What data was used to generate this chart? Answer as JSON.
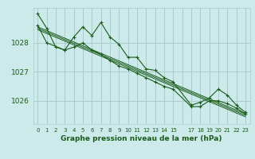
{
  "title": "Graphe pression niveau de la mer (hPa)",
  "bg_color": "#cceaea",
  "grid_color": "#aacccc",
  "line_color": "#1a5c1a",
  "xlim": [
    -0.5,
    23.5
  ],
  "ylim": [
    1025.2,
    1029.2
  ],
  "yticks": [
    1026,
    1027,
    1028
  ],
  "xtick_labels": [
    "0",
    "1",
    "2",
    "3",
    "4",
    "5",
    "6",
    "7",
    "8",
    "9",
    "10",
    "11",
    "12",
    "13",
    "14",
    "15",
    "",
    "17",
    "18",
    "19",
    "20",
    "21",
    "22",
    "23"
  ],
  "series": [
    {
      "x": [
        0,
        1,
        2,
        3,
        4,
        5,
        6,
        7,
        8,
        9,
        10,
        11,
        12,
        13,
        14,
        15,
        17,
        18,
        19,
        20,
        21,
        22,
        23
      ],
      "y": [
        1029.0,
        1028.5,
        1027.85,
        1027.75,
        1028.2,
        1028.55,
        1028.25,
        1028.7,
        1028.2,
        1027.95,
        1027.5,
        1027.5,
        1027.1,
        1027.05,
        1026.8,
        1026.65,
        1025.85,
        1025.95,
        1026.1,
        1026.4,
        1026.2,
        1025.85,
        1025.6
      ],
      "marker": "+"
    },
    {
      "x": [
        0,
        1,
        3,
        4,
        5,
        6,
        7,
        8,
        9,
        10,
        11,
        12,
        13,
        14,
        15,
        17,
        18,
        19,
        20,
        21,
        22,
        23
      ],
      "y": [
        1028.6,
        1028.0,
        1027.75,
        1027.85,
        1028.0,
        1027.75,
        1027.6,
        1027.4,
        1027.2,
        1027.1,
        1026.95,
        1026.8,
        1026.65,
        1026.5,
        1026.4,
        1025.8,
        1025.8,
        1026.0,
        1026.0,
        1025.9,
        1025.75,
        1025.55
      ],
      "marker": "+"
    },
    {
      "x": [
        0,
        23
      ],
      "y": [
        1028.55,
        1025.55
      ],
      "marker": null
    },
    {
      "x": [
        0,
        23
      ],
      "y": [
        1028.5,
        1025.5
      ],
      "marker": null
    },
    {
      "x": [
        0,
        23
      ],
      "y": [
        1028.45,
        1025.45
      ],
      "marker": null
    }
  ]
}
